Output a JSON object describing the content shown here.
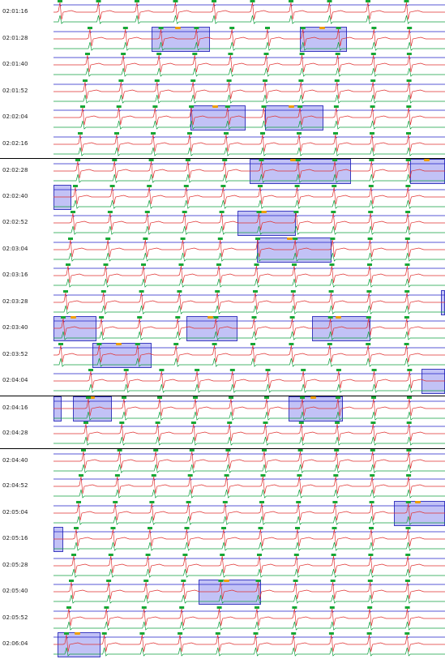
{
  "colors": {
    "ecg_red": "#e03030",
    "ecg_blue": "#2020c8",
    "ecg_green": "#10a040",
    "beat_marker": "#16a836",
    "highlight_fill": "#7878eb",
    "highlight_border": "#3c3cc0",
    "event_marker": "#f0a000"
  },
  "strips": [
    {
      "time": "02:01:16",
      "beats": 10,
      "highlights": []
    },
    {
      "time": "02:01:28",
      "beats": 10,
      "highlights": [
        {
          "from": 0.25,
          "to": 0.4
        },
        {
          "from": 0.63,
          "to": 0.75
        }
      ]
    },
    {
      "time": "02:01:40",
      "beats": 10,
      "highlights": []
    },
    {
      "time": "02:01:52",
      "beats": 10,
      "highlights": []
    },
    {
      "time": "02:02:04",
      "beats": 10,
      "highlights": [
        {
          "from": 0.35,
          "to": 0.49
        },
        {
          "from": 0.54,
          "to": 0.69
        }
      ]
    },
    {
      "time": "02:02:16",
      "beats": 10,
      "highlights": []
    },
    {
      "time": "02:02:28",
      "beats": 10,
      "highlights": [
        {
          "from": 0.5,
          "to": 0.76
        },
        {
          "from": 0.91,
          "to": 1.0
        }
      ]
    },
    {
      "time": "02:02:40",
      "beats": 10,
      "highlights": [
        {
          "from": 0.0,
          "to": 0.045
        }
      ]
    },
    {
      "time": "02:02:52",
      "beats": 10,
      "highlights": [
        {
          "from": 0.47,
          "to": 0.62
        }
      ]
    },
    {
      "time": "02:03:04",
      "beats": 10,
      "highlights": [
        {
          "from": 0.52,
          "to": 0.71
        }
      ]
    },
    {
      "time": "02:03:16",
      "beats": 10,
      "highlights": []
    },
    {
      "time": "02:03:28",
      "beats": 10,
      "highlights": [
        {
          "from": 0.99,
          "to": 1.0
        }
      ]
    },
    {
      "time": "02:03:40",
      "beats": 10,
      "highlights": [
        {
          "from": 0.0,
          "to": 0.11
        },
        {
          "from": 0.34,
          "to": 0.47
        },
        {
          "from": 0.66,
          "to": 0.81
        }
      ]
    },
    {
      "time": "02:03:52",
      "beats": 10,
      "highlights": [
        {
          "from": 0.1,
          "to": 0.25
        }
      ]
    },
    {
      "time": "02:04:04",
      "beats": 10,
      "highlights": [
        {
          "from": 0.94,
          "to": 1.0
        }
      ]
    },
    {
      "time": "02:04:16",
      "beats": 10,
      "highlights": [
        {
          "from": 0.0,
          "to": 0.02
        },
        {
          "from": 0.05,
          "to": 0.15
        },
        {
          "from": 0.6,
          "to": 0.74
        }
      ]
    },
    {
      "time": "02:04:28",
      "beats": 10,
      "highlights": []
    },
    {
      "time": "02:04:40",
      "beats": 10,
      "highlights": []
    },
    {
      "time": "02:04:52",
      "beats": 10,
      "highlights": []
    },
    {
      "time": "02:05:04",
      "beats": 10,
      "highlights": [
        {
          "from": 0.87,
          "to": 1.0
        }
      ]
    },
    {
      "time": "02:05:16",
      "beats": 10,
      "highlights": [
        {
          "from": 0.0,
          "to": 0.025
        }
      ]
    },
    {
      "time": "02:05:28",
      "beats": 10,
      "highlights": []
    },
    {
      "time": "02:05:40",
      "beats": 10,
      "highlights": [
        {
          "from": 0.37,
          "to": 0.53
        }
      ]
    },
    {
      "time": "02:05:52",
      "beats": 10,
      "highlights": []
    },
    {
      "time": "02:06:04",
      "beats": 10,
      "highlights": [
        {
          "from": 0.01,
          "to": 0.12
        }
      ]
    }
  ]
}
